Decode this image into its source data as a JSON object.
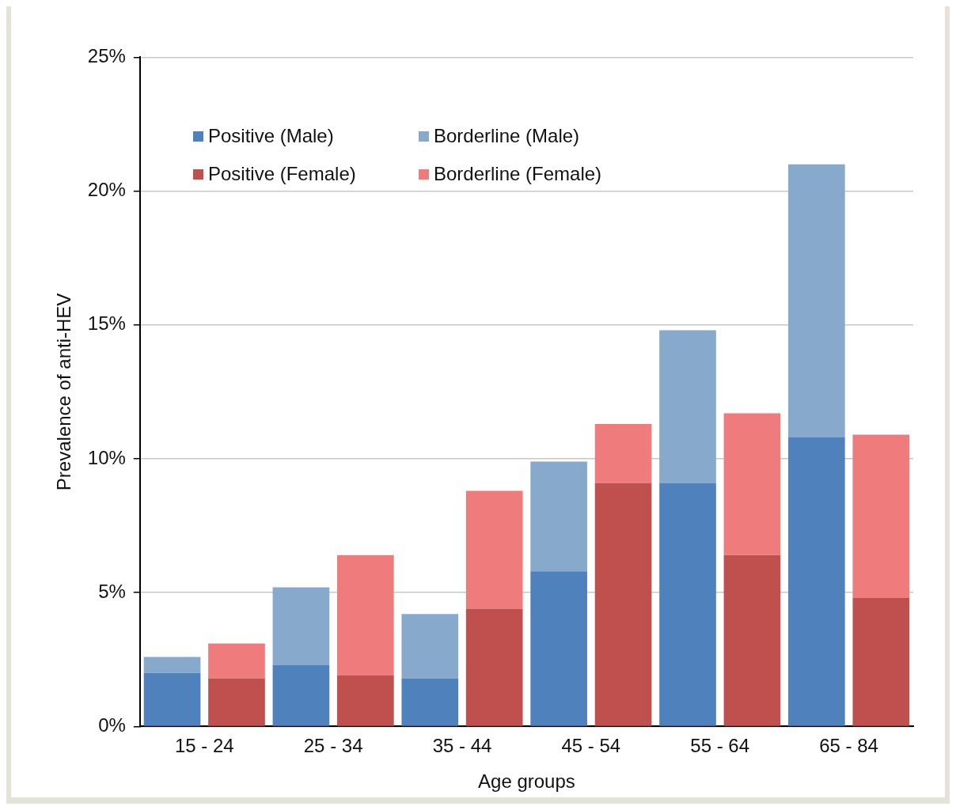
{
  "chart_data": {
    "type": "bar",
    "stacked": true,
    "xlabel": "Age groups",
    "ylabel": "Prevalence of anti-HEV",
    "categories": [
      "15 - 24",
      null,
      "25 - 34",
      null,
      "35 - 44",
      null,
      "45 - 54",
      null,
      "55 - 64",
      null,
      "65 - 84",
      null
    ],
    "series": [
      {
        "name": "Positive (Male)",
        "color": "#4f81bd",
        "values": [
          2.0,
          null,
          2.3,
          null,
          1.8,
          null,
          5.8,
          null,
          9.1,
          null,
          10.8,
          null
        ]
      },
      {
        "name": "Borderline (Male)",
        "color": "#87a9cc",
        "values": [
          0.6,
          null,
          2.9,
          null,
          2.4,
          null,
          4.1,
          null,
          5.7,
          null,
          10.2,
          null
        ]
      },
      {
        "name": "Positive (Female)",
        "color": "#c0504d",
        "values": [
          null,
          1.8,
          null,
          1.9,
          null,
          4.4,
          null,
          9.1,
          null,
          6.4,
          null,
          4.8
        ]
      },
      {
        "name": "Borderline (Female)",
        "color": "#f07b7d",
        "values": [
          null,
          1.3,
          null,
          4.5,
          null,
          4.4,
          null,
          2.2,
          null,
          5.3,
          null,
          6.1
        ]
      }
    ],
    "ylim": [
      0,
      25
    ],
    "yticks": [
      {
        "value": 0,
        "label": "0%"
      },
      {
        "value": 5,
        "label": "5%"
      },
      {
        "value": 10,
        "label": "10%"
      },
      {
        "value": 15,
        "label": "15%"
      },
      {
        "value": 20,
        "label": "20%"
      },
      {
        "value": 25,
        "label": "25%"
      }
    ],
    "grid": "y",
    "legend": "top left"
  }
}
